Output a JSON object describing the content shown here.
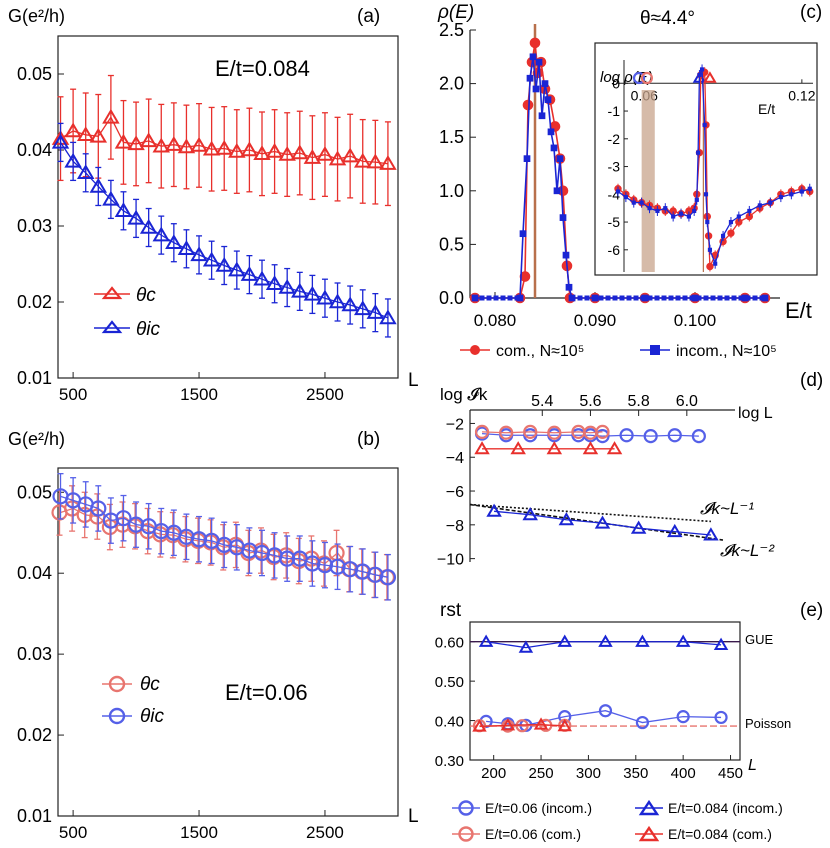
{
  "colors": {
    "red": "#e8302c",
    "blue": "#1a25d4",
    "pink": "#e8756f",
    "lblue": "#5560e8",
    "band": "#c8a48c",
    "brown": "#b8704c",
    "purple": "#3a1a4c"
  },
  "chart_data": [
    {
      "id": "a",
      "type": "scatter",
      "panel_label": "(a)",
      "ylabel": "G(e²/h)",
      "xlabel": "L",
      "annotation": "E/t=0.084",
      "xlim": [
        380,
        3080
      ],
      "ylim": [
        0.01,
        0.055
      ],
      "xticks": [
        500,
        1500,
        2500
      ],
      "yticks": [
        0.01,
        0.02,
        0.03,
        0.04,
        0.05
      ],
      "ytick_labels": [
        "0.01",
        "0.02",
        "0.03",
        "0.04",
        "0.05"
      ],
      "legend": [
        "θc",
        "θic"
      ],
      "series": [
        {
          "name": "θc",
          "color": "red",
          "marker": "triangle",
          "err": 0.0055,
          "x": [
            400,
            500,
            600,
            700,
            800,
            900,
            1000,
            1100,
            1200,
            1300,
            1400,
            1500,
            1600,
            1700,
            1800,
            1900,
            2000,
            2100,
            2200,
            2300,
            2400,
            2500,
            2600,
            2700,
            2800,
            2900,
            3000
          ],
          "y": [
            0.0415,
            0.0425,
            0.042,
            0.0418,
            0.0443,
            0.041,
            0.0408,
            0.0412,
            0.0405,
            0.0407,
            0.0404,
            0.0406,
            0.0401,
            0.0402,
            0.0398,
            0.04,
            0.0395,
            0.0398,
            0.0394,
            0.0396,
            0.039,
            0.0394,
            0.0388,
            0.0392,
            0.0385,
            0.0384,
            0.0382
          ]
        },
        {
          "name": "θic",
          "color": "blue",
          "marker": "triangle",
          "err": 0.0025,
          "x": [
            400,
            500,
            600,
            700,
            800,
            900,
            1000,
            1100,
            1200,
            1300,
            1400,
            1500,
            1600,
            1700,
            1800,
            1900,
            2000,
            2100,
            2200,
            2300,
            2400,
            2500,
            2600,
            2700,
            2800,
            2900,
            3000
          ],
          "y": [
            0.041,
            0.0385,
            0.037,
            0.0352,
            0.0335,
            0.032,
            0.031,
            0.0298,
            0.0288,
            0.0278,
            0.027,
            0.0262,
            0.0255,
            0.0248,
            0.0242,
            0.0236,
            0.023,
            0.0224,
            0.0219,
            0.0214,
            0.021,
            0.0205,
            0.02,
            0.0196,
            0.0191,
            0.0186,
            0.0179
          ]
        }
      ]
    },
    {
      "id": "b",
      "type": "scatter",
      "panel_label": "(b)",
      "ylabel": "G(e²/h)",
      "xlabel": "L",
      "annotation": "E/t=0.06",
      "xlim": [
        380,
        3080
      ],
      "ylim": [
        0.01,
        0.053
      ],
      "xticks": [
        500,
        1500,
        2500
      ],
      "yticks": [
        0.01,
        0.02,
        0.03,
        0.04,
        0.05
      ],
      "ytick_labels": [
        "0.01",
        "0.02",
        "0.03",
        "0.04",
        "0.05"
      ],
      "legend": [
        "θc",
        "θic"
      ],
      "series": [
        {
          "name": "θc",
          "color": "pink",
          "marker": "circle",
          "err": 0.0028,
          "x": [
            400,
            500,
            600,
            700,
            800,
            900,
            1000,
            1100,
            1200,
            1300,
            1400,
            1500,
            1600,
            1700,
            1800,
            1900,
            2000,
            2100,
            2200,
            2300,
            2400,
            2500,
            2600,
            2700,
            2800,
            2900,
            3000
          ],
          "y": [
            0.0475,
            0.048,
            0.0472,
            0.047,
            0.0457,
            0.046,
            0.0458,
            0.0452,
            0.0448,
            0.0447,
            0.0442,
            0.044,
            0.0438,
            0.0432,
            0.0435,
            0.0425,
            0.0428,
            0.042,
            0.0422,
            0.0415,
            0.0418,
            0.0412,
            0.0425,
            0.0405,
            0.0402,
            0.0398,
            0.0395
          ]
        },
        {
          "name": "θic",
          "color": "lblue",
          "marker": "circle",
          "err": 0.0028,
          "x": [
            400,
            500,
            600,
            700,
            800,
            900,
            1000,
            1100,
            1200,
            1300,
            1400,
            1500,
            1600,
            1700,
            1800,
            1900,
            2000,
            2100,
            2200,
            2300,
            2400,
            2500,
            2600,
            2700,
            2800,
            2900,
            3000
          ],
          "y": [
            0.0495,
            0.049,
            0.0485,
            0.048,
            0.0465,
            0.0468,
            0.046,
            0.0458,
            0.0452,
            0.045,
            0.0445,
            0.0442,
            0.044,
            0.0435,
            0.0432,
            0.0428,
            0.0425,
            0.0422,
            0.0418,
            0.0418,
            0.0412,
            0.041,
            0.0408,
            0.0405,
            0.0402,
            0.0398,
            0.0395
          ]
        }
      ]
    },
    {
      "id": "c",
      "type": "line",
      "panel_label": "(c)",
      "ylabel": "ρ(E)",
      "xlabel": "E/t",
      "annotation": "θ≈4.4°",
      "xlim": [
        0.0775,
        0.1075
      ],
      "ylim": [
        0,
        2.5
      ],
      "xticks": [
        0.08,
        0.09,
        0.1
      ],
      "xtick_labels": [
        "0.080",
        "0.090",
        "0.100"
      ],
      "yticks": [
        0,
        0.5,
        1,
        1.5,
        2,
        2.5
      ],
      "ytick_labels": [
        "0.0",
        "0.5",
        "1.0",
        "1.5",
        "2.0",
        "2.5"
      ],
      "markers_at": [
        0.084
      ],
      "legend": [
        "com., N≈10⁵",
        "incom., N≈10⁵"
      ],
      "series": [
        {
          "name": "com., N≈10⁵",
          "color": "red",
          "marker": "circle",
          "x": [
            0.078,
            0.0825,
            0.083,
            0.0833,
            0.0837,
            0.084,
            0.0843,
            0.0846,
            0.085,
            0.0855,
            0.086,
            0.0865,
            0.0868,
            0.0872,
            0.0875,
            0.09,
            0.095,
            0.1,
            0.105,
            0.107
          ],
          "y": [
            0,
            0,
            0.2,
            1.8,
            2.2,
            2.38,
            2.1,
            2.2,
            1.95,
            1.85,
            1.6,
            1.3,
            1.0,
            0.3,
            0,
            0,
            0,
            0,
            0,
            0
          ]
        },
        {
          "name": "incom., N≈10⁵",
          "color": "blue",
          "marker": "square",
          "x": [
            0.078,
            0.0825,
            0.0828,
            0.0832,
            0.0835,
            0.0838,
            0.0841,
            0.0844,
            0.0847,
            0.085,
            0.0853,
            0.0856,
            0.0859,
            0.0862,
            0.0865,
            0.0868,
            0.0871,
            0.0874,
            0.0877,
            0.09,
            0.095,
            0.1,
            0.105,
            0.107
          ],
          "y": [
            0,
            0,
            0.6,
            1.3,
            2.05,
            2.25,
            1.95,
            2.2,
            1.7,
            2.0,
            1.85,
            1.55,
            1.4,
            1.0,
            1.3,
            0.75,
            0.4,
            0.1,
            0,
            0,
            0,
            0,
            0,
            0
          ]
        }
      ],
      "inset": {
        "ylabel": "log ρ(E)",
        "xlabel": "E/t",
        "xlim": [
          0.05,
          0.125
        ],
        "ylim": [
          -6.8,
          1.2
        ],
        "xticks": [
          0.06,
          0.12
        ],
        "xtick_labels": [
          "0.06",
          "0.12"
        ],
        "yticks": [
          -6,
          -5,
          -4,
          -3,
          -2,
          -1,
          0
        ],
        "ytick_labels": [
          "-6",
          "-5",
          "-4",
          "-3",
          "-2",
          "-1",
          "0"
        ],
        "band": [
          0.059,
          0.064
        ],
        "top_markers": [
          {
            "x": 0.058,
            "m": "circle",
            "c": "lblue"
          },
          {
            "x": 0.061,
            "m": "circle",
            "c": "pink"
          },
          {
            "x": 0.081,
            "m": "triangle",
            "c": "blue"
          },
          {
            "x": 0.085,
            "m": "triangle",
            "c": "red"
          }
        ],
        "series": [
          {
            "name": "com.",
            "color": "red",
            "x": [
              0.05,
              0.053,
              0.056,
              0.059,
              0.062,
              0.065,
              0.068,
              0.071,
              0.074,
              0.077,
              0.079,
              0.08,
              0.081,
              0.0815,
              0.083,
              0.0835,
              0.084,
              0.0845,
              0.085,
              0.087,
              0.09,
              0.093,
              0.096,
              0.1,
              0.104,
              0.108,
              0.112,
              0.116,
              0.12,
              0.123
            ],
            "y": [
              -3.8,
              -4.0,
              -4.2,
              -4.3,
              -4.4,
              -4.5,
              -4.6,
              -4.6,
              -4.7,
              -4.6,
              -4.5,
              -4.0,
              -2.5,
              0.3,
              0.4,
              -1.5,
              -4.8,
              -5.5,
              -6.6,
              -6.2,
              -5.7,
              -5.4,
              -5.0,
              -4.8,
              -4.5,
              -4.3,
              -4.0,
              -3.9,
              -3.8,
              -3.9
            ]
          },
          {
            "name": "incom.",
            "color": "blue",
            "x": [
              0.05,
              0.053,
              0.056,
              0.059,
              0.062,
              0.065,
              0.068,
              0.071,
              0.074,
              0.077,
              0.079,
              0.08,
              0.0805,
              0.081,
              0.082,
              0.083,
              0.0835,
              0.084,
              0.085,
              0.087,
              0.09,
              0.093,
              0.096,
              0.1,
              0.104,
              0.108,
              0.112,
              0.116,
              0.12,
              0.123
            ],
            "y": [
              -3.9,
              -4.1,
              -4.3,
              -4.3,
              -4.5,
              -4.6,
              -4.5,
              -4.8,
              -4.7,
              -4.8,
              -4.6,
              -4.2,
              -2.5,
              0.3,
              0.5,
              -1.5,
              -4.0,
              -5.0,
              -6.0,
              -6.5,
              -5.5,
              -5.0,
              -4.8,
              -4.6,
              -4.4,
              -4.3,
              -4.1,
              -4.0,
              -3.9,
              -3.8
            ]
          }
        ]
      }
    },
    {
      "id": "d",
      "type": "line",
      "panel_label": "(d)",
      "ylabel": "log 𝓘k",
      "xlabel": "log L",
      "xlim": [
        5.1,
        6.2
      ],
      "ylim": [
        -10.2,
        -1.5
      ],
      "xticks": [
        5.4,
        5.6,
        5.8,
        6.0
      ],
      "xtick_labels": [
        "5.4",
        "5.6",
        "5.8",
        "6.0"
      ],
      "yticks": [
        -10,
        -8,
        -6,
        -4,
        -2
      ],
      "ytick_labels": [
        "−10",
        "−8",
        "−6",
        "−4",
        "−2"
      ],
      "fit_labels": [
        "𝓘k~L⁻¹",
        "𝓘k~L⁻²"
      ],
      "series": [
        {
          "name": "E/t=0.06 (incom.)",
          "color": "lblue",
          "marker": "circle",
          "x": [
            5.15,
            5.25,
            5.35,
            5.45,
            5.55,
            5.6,
            5.65,
            5.75,
            5.85,
            5.95,
            6.05
          ],
          "y": [
            -2.6,
            -2.7,
            -2.7,
            -2.7,
            -2.7,
            -2.7,
            -2.75,
            -2.7,
            -2.75,
            -2.7,
            -2.75
          ]
        },
        {
          "name": "E/t=0.06 (com.)",
          "color": "pink",
          "marker": "circle",
          "x": [
            5.15,
            5.25,
            5.35,
            5.45,
            5.55,
            5.6,
            5.65
          ],
          "y": [
            -2.5,
            -2.55,
            -2.5,
            -2.55,
            -2.5,
            -2.55,
            -2.5
          ]
        },
        {
          "name": "E/t=0.084 (com.)",
          "color": "red",
          "marker": "triangle",
          "x": [
            5.15,
            5.3,
            5.45,
            5.6,
            5.7
          ],
          "y": [
            -3.5,
            -3.5,
            -3.5,
            -3.5,
            -3.5
          ]
        },
        {
          "name": "E/t=0.084 (incom.)",
          "color": "blue",
          "marker": "triangle",
          "x": [
            5.2,
            5.35,
            5.5,
            5.65,
            5.8,
            5.95,
            6.1
          ],
          "y": [
            -7.2,
            -7.4,
            -7.7,
            -7.9,
            -8.2,
            -8.4,
            -8.6
          ]
        }
      ],
      "fits": [
        {
          "label": "L^-1",
          "x": [
            5.1,
            6.1
          ],
          "y": [
            -6.8,
            -7.8
          ]
        },
        {
          "label": "L^-2",
          "x": [
            5.1,
            6.15
          ],
          "y": [
            -6.8,
            -8.9
          ]
        }
      ]
    },
    {
      "id": "e",
      "type": "line",
      "panel_label": "(e)",
      "ylabel": "rst",
      "xlabel": "L",
      "xlim": [
        175,
        460
      ],
      "ylim": [
        0.3,
        0.65
      ],
      "xticks": [
        200,
        250,
        300,
        350,
        400,
        450
      ],
      "xtick_labels": [
        "200",
        "250",
        "300",
        "350",
        "400",
        "450"
      ],
      "yticks": [
        0.3,
        0.4,
        0.5,
        0.6
      ],
      "ytick_labels": [
        "0.30",
        "0.40",
        "0.50",
        "0.60"
      ],
      "ref_lines": [
        {
          "label": "GUE",
          "y": 0.6
        },
        {
          "label": "Poisson",
          "y": 0.386
        }
      ],
      "series": [
        {
          "name": "E/t=0.06 (incom.)",
          "color": "lblue",
          "marker": "circle",
          "x": [
            192,
            215,
            234,
            275,
            318,
            357,
            400,
            440
          ],
          "y": [
            0.398,
            0.392,
            0.388,
            0.41,
            0.425,
            0.395,
            0.41,
            0.408
          ]
        },
        {
          "name": "E/t=0.06 (com.)",
          "color": "pink",
          "marker": "circle",
          "x": [
            185,
            215,
            230,
            255,
            275
          ],
          "y": [
            0.387,
            0.386,
            0.387,
            0.388,
            0.388
          ]
        },
        {
          "name": "E/t=0.084 (incom.)",
          "color": "blue",
          "marker": "triangle",
          "x": [
            192,
            234,
            275,
            318,
            357,
            400,
            440
          ],
          "y": [
            0.6,
            0.585,
            0.6,
            0.6,
            0.6,
            0.6,
            0.592
          ]
        },
        {
          "name": "E/t=0.084 (com.)",
          "color": "red",
          "marker": "triangle",
          "x": [
            185,
            215,
            250,
            275
          ],
          "y": [
            0.385,
            0.388,
            0.39,
            0.386
          ]
        }
      ]
    }
  ],
  "bottom_legend": [
    "E/t=0.06 (incom.)",
    "E/t=0.084 (incom.)",
    "E/t=0.06 (com.)",
    "E/t=0.084 (com.)"
  ]
}
